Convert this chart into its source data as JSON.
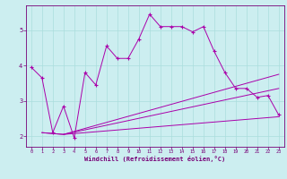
{
  "title": "",
  "xlabel": "Windchill (Refroidissement éolien,°C)",
  "ylabel": "",
  "background_color": "#cceef0",
  "grid_color": "#aadddd",
  "line_color": "#aa00aa",
  "xlim": [
    -0.5,
    23.5
  ],
  "ylim": [
    1.7,
    5.7
  ],
  "xticks": [
    0,
    1,
    2,
    3,
    4,
    5,
    6,
    7,
    8,
    9,
    10,
    11,
    12,
    13,
    14,
    15,
    16,
    17,
    18,
    19,
    20,
    21,
    22,
    23
  ],
  "yticks": [
    2,
    3,
    4,
    5
  ],
  "line1_x": [
    0,
    1,
    2,
    3,
    4,
    5,
    6,
    7,
    8,
    9,
    10,
    11,
    12,
    13,
    14,
    15,
    16,
    17,
    18,
    19,
    20,
    21,
    22,
    23
  ],
  "line1_y": [
    3.95,
    3.65,
    2.1,
    2.85,
    1.95,
    3.8,
    3.45,
    4.55,
    4.2,
    4.2,
    4.75,
    5.45,
    5.1,
    5.1,
    5.1,
    4.95,
    5.1,
    4.4,
    3.8,
    3.35,
    3.35,
    3.1,
    3.15,
    2.6
  ],
  "line2_x": [
    1,
    3,
    23
  ],
  "line2_y": [
    2.1,
    2.05,
    3.75
  ],
  "line3_x": [
    1,
    3,
    23
  ],
  "line3_y": [
    2.1,
    2.05,
    2.55
  ],
  "line4_x": [
    3,
    23
  ],
  "line4_y": [
    2.05,
    3.35
  ]
}
